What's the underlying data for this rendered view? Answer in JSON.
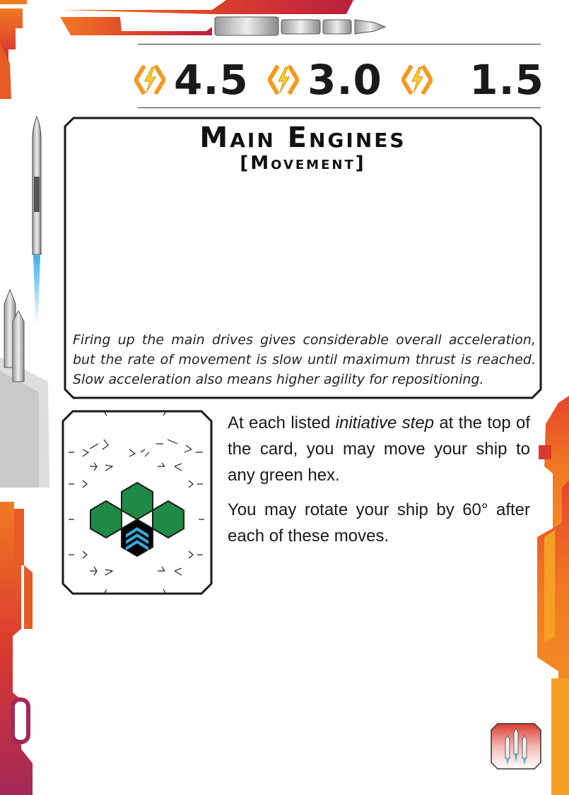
{
  "initiative": [
    {
      "value": "4.5",
      "icon": "energy-bolt-icon"
    },
    {
      "value": "3.0",
      "icon": "energy-bolt-icon"
    },
    {
      "value": "1.5",
      "icon": "energy-bolt-icon"
    }
  ],
  "card": {
    "title": "Main Engines",
    "subtitle": "[Movement]",
    "flavor": "Firing up the main drives gives considerable overall acceleration, but the rate of movement is slow until maximum thrust is reached. Slow acceleration also means higher agility for repositioning."
  },
  "rules": {
    "p1_before": "At each listed ",
    "p1_emph": "initiative step",
    "p1_after": " at the top of the card, you may move your ship to any green hex.",
    "p2": "You may rotate your ship by 60° after each of these moves."
  },
  "colors": {
    "green_hex": "#1e8a45",
    "ship_hex": "#000000",
    "chevron": "#3aa6d8",
    "bolt_orange": "#f29a1e",
    "bolt_yellow": "#f5d22a",
    "frame_red": "#d93a2f",
    "frame_orange": "#f07a23"
  },
  "icons": {
    "rocket": "rocket-icon",
    "ship_marker": "chevron-up-icon",
    "badge": "rocket-cluster-icon"
  }
}
